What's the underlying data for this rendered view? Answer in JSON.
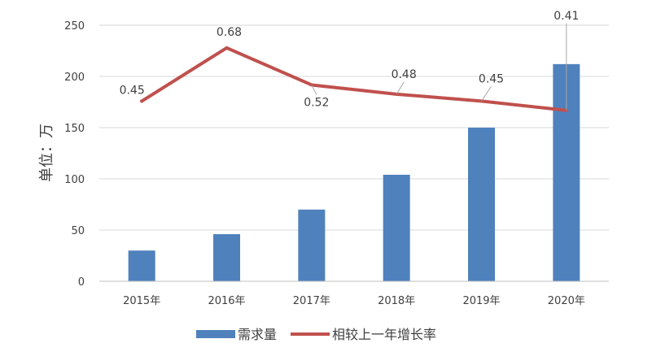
{
  "chart_data": {
    "type": "bar",
    "categories": [
      "2015年",
      "2016年",
      "2017年",
      "2018年",
      "2019年",
      "2020年"
    ],
    "series": [
      {
        "name": "需求量",
        "type": "bar",
        "axis": "left",
        "color": "#4f81bd",
        "values": [
          30,
          46,
          70,
          104,
          150,
          212
        ]
      },
      {
        "name": "相较上一年增长率",
        "type": "line",
        "color": "#c0504d",
        "values": [
          0.45,
          0.68,
          0.52,
          0.48,
          0.45,
          0.41
        ],
        "labels": [
          "0.45",
          "0.68",
          "0.52",
          "0.48",
          "0.45",
          "0.41"
        ]
      }
    ],
    "ylabel": "单位：万",
    "ylim": [
      0,
      250
    ],
    "yticks": [
      0,
      50,
      100,
      150,
      200,
      250
    ],
    "ytick_labels": [
      "0",
      "50",
      "100",
      "150",
      "200",
      "250"
    ],
    "grid": true,
    "legend": "bottom",
    "colors": {
      "grid": "#d9d9d9",
      "axis": "#bfbfbf",
      "text": "#404040",
      "leader": "#a6a6a6"
    }
  }
}
